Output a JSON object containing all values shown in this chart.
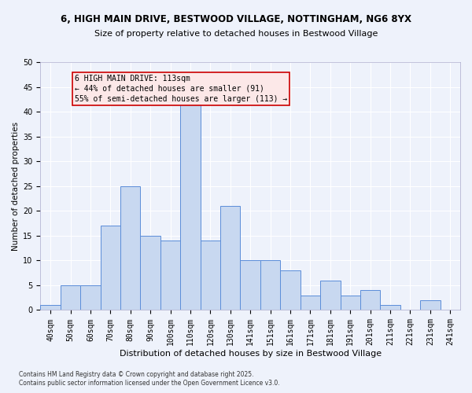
{
  "title1": "6, HIGH MAIN DRIVE, BESTWOOD VILLAGE, NOTTINGHAM, NG6 8YX",
  "title2": "Size of property relative to detached houses in Bestwood Village",
  "xlabel": "Distribution of detached houses by size in Bestwood Village",
  "ylabel": "Number of detached properties",
  "footnote1": "Contains HM Land Registry data © Crown copyright and database right 2025.",
  "footnote2": "Contains public sector information licensed under the Open Government Licence v3.0.",
  "annotation_title": "6 HIGH MAIN DRIVE: 113sqm",
  "annotation_line1": "← 44% of detached houses are smaller (91)",
  "annotation_line2": "55% of semi-detached houses are larger (113) →",
  "bar_labels": [
    "40sqm",
    "50sqm",
    "60sqm",
    "70sqm",
    "80sqm",
    "90sqm",
    "100sqm",
    "110sqm",
    "120sqm",
    "130sqm",
    "141sqm",
    "151sqm",
    "161sqm",
    "171sqm",
    "181sqm",
    "191sqm",
    "201sqm",
    "211sqm",
    "221sqm",
    "231sqm",
    "241sqm"
  ],
  "bar_values": [
    1,
    5,
    5,
    17,
    25,
    15,
    14,
    42,
    14,
    21,
    10,
    10,
    8,
    3,
    6,
    3,
    4,
    1,
    0,
    2,
    0
  ],
  "bar_color": "#c8d8f0",
  "bar_edge_color": "#5b8dd9",
  "ylim": [
    0,
    50
  ],
  "yticks": [
    0,
    5,
    10,
    15,
    20,
    25,
    30,
    35,
    40,
    45,
    50
  ],
  "bg_color": "#eef2fb",
  "grid_color": "#ffffff",
  "annotation_box_facecolor": "#fce8e8",
  "annotation_box_edgecolor": "#cc0000",
  "title1_fontsize": 8.5,
  "title2_fontsize": 8.0,
  "xlabel_fontsize": 8.0,
  "ylabel_fontsize": 7.5,
  "tick_fontsize": 7.0,
  "annotation_fontsize": 7.0,
  "footnote_fontsize": 5.5
}
